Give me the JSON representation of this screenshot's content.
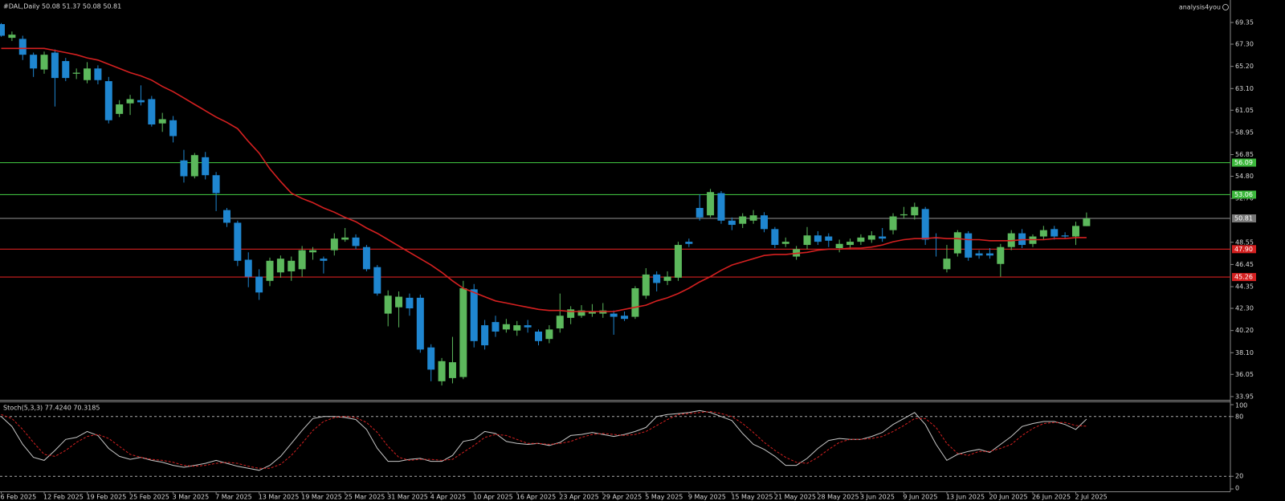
{
  "chart_data": [
    {
      "type": "candlestick",
      "title": "#DAL,Daily  50.08 51.37 50.08 50.81",
      "watermark": "analysis4you",
      "categories": [
        "6 Feb 2025",
        null,
        null,
        null,
        "12 Feb 2025",
        null,
        null,
        null,
        "19 Feb 2025",
        null,
        null,
        null,
        "25 Feb 2025",
        null,
        null,
        null,
        "3 Mar 2025",
        null,
        null,
        null,
        "7 Mar 2025",
        null,
        null,
        null,
        "13 Mar 2025",
        null,
        null,
        null,
        "19 Mar 2025",
        null,
        null,
        null,
        "25 Mar 2025",
        null,
        null,
        null,
        "31 Mar 2025",
        null,
        null,
        null,
        "4 Apr 2025",
        null,
        null,
        null,
        "10 Apr 2025",
        null,
        null,
        null,
        "16 Apr 2025",
        null,
        null,
        null,
        "23 Apr 2025",
        null,
        null,
        null,
        "29 Apr 2025",
        null,
        null,
        null,
        "5 May 2025",
        null,
        null,
        null,
        "9 May 2025",
        null,
        null,
        null,
        "15 May 2025",
        null,
        null,
        null,
        "21 May 2025",
        null,
        null,
        null,
        "28 May 2025",
        null,
        null,
        null,
        "3 Jun 2025",
        null,
        null,
        null,
        "9 Jun 2025",
        null,
        null,
        null,
        "13 Jun 2025",
        null,
        null,
        null,
        "20 Jun 2025",
        null,
        null,
        null,
        "26 Jun 2025",
        null,
        null,
        null,
        "2 Jul 2025",
        null
      ],
      "open": [
        69.2,
        67.9,
        67.8,
        66.3,
        64.9,
        66.5,
        65.7,
        64.5,
        63.9,
        65.0,
        63.8,
        60.7,
        61.7,
        62.0,
        62.1,
        59.8,
        60.1,
        56.3,
        54.8,
        56.6,
        54.9,
        51.6,
        50.4,
        46.9,
        45.3,
        44.9,
        45.7,
        45.8,
        46.0,
        47.6,
        47.0,
        47.8,
        48.8,
        49.0,
        48.1,
        46.2,
        41.8,
        42.4,
        43.3,
        43.3,
        38.6,
        35.4,
        35.7,
        35.8,
        44.1,
        40.7,
        41.0,
        40.3,
        40.2,
        40.7,
        40.1,
        39.4,
        40.4,
        41.4,
        41.6,
        41.8,
        41.8,
        41.8,
        41.6,
        41.5,
        43.5,
        45.5,
        44.9,
        45.2,
        48.6,
        51.8,
        51.1,
        53.2,
        50.6,
        50.3,
        50.6,
        51.1,
        49.8,
        48.4,
        47.2,
        48.3,
        49.2,
        49.1,
        48.0,
        48.3,
        48.6,
        48.8,
        49.1,
        49.7,
        51.1,
        51.1,
        51.7,
        49.0,
        46.0,
        47.5,
        49.4,
        47.5,
        47.5,
        46.5,
        48.1,
        49.4,
        48.4,
        49.1,
        49.8,
        49.2,
        49.1,
        50.08
      ],
      "high": [
        69.3,
        68.5,
        68.1,
        66.5,
        66.6,
        66.8,
        66.0,
        65.0,
        65.6,
        65.3,
        64.2,
        62.0,
        62.5,
        63.4,
        62.4,
        60.8,
        60.5,
        57.3,
        57.0,
        57.1,
        55.2,
        51.8,
        50.6,
        47.6,
        46.0,
        47.1,
        47.3,
        47.2,
        48.2,
        48.1,
        47.2,
        49.4,
        49.9,
        49.3,
        48.3,
        46.4,
        44.0,
        43.9,
        43.7,
        43.6,
        38.9,
        37.6,
        39.6,
        44.9,
        44.6,
        41.2,
        41.6,
        41.3,
        41.1,
        41.2,
        40.3,
        40.7,
        43.7,
        42.5,
        42.6,
        42.7,
        42.8,
        42.1,
        42.0,
        44.4,
        46.1,
        45.8,
        45.8,
        48.6,
        48.9,
        53.1,
        53.6,
        53.4,
        50.9,
        51.3,
        51.6,
        51.4,
        50.0,
        49.0,
        48.2,
        50.0,
        49.6,
        49.4,
        48.8,
        48.9,
        49.3,
        49.6,
        49.9,
        51.3,
        51.9,
        52.3,
        51.9,
        49.4,
        48.3,
        49.7,
        49.6,
        47.8,
        48.0,
        48.4,
        49.7,
        49.8,
        49.3,
        50.1,
        50.1,
        49.5,
        50.5,
        51.37
      ],
      "low": [
        68.0,
        67.6,
        65.8,
        64.2,
        64.5,
        61.4,
        63.8,
        64.0,
        63.6,
        63.5,
        59.8,
        60.4,
        60.6,
        61.5,
        59.5,
        59.0,
        58.0,
        54.2,
        54.6,
        54.5,
        51.5,
        50.0,
        46.3,
        44.3,
        43.1,
        44.4,
        45.2,
        44.9,
        45.3,
        46.9,
        45.6,
        47.3,
        48.6,
        47.9,
        45.8,
        43.5,
        40.6,
        40.5,
        41.6,
        38.1,
        35.4,
        35.0,
        35.2,
        35.6,
        38.6,
        38.4,
        39.6,
        40.0,
        39.7,
        40.0,
        38.8,
        39.0,
        40.0,
        40.8,
        41.4,
        41.5,
        41.4,
        39.8,
        41.1,
        41.3,
        43.2,
        43.9,
        44.5,
        44.9,
        48.1,
        50.6,
        50.9,
        50.3,
        49.7,
        49.9,
        50.3,
        49.5,
        48.0,
        48.1,
        46.9,
        47.9,
        48.3,
        48.1,
        47.6,
        47.9,
        48.3,
        48.5,
        48.6,
        49.3,
        50.8,
        50.7,
        48.3,
        47.2,
        45.7,
        47.2,
        46.8,
        47.0,
        47.0,
        45.3,
        47.8,
        48.0,
        48.1,
        48.8,
        48.8,
        48.9,
        48.3,
        50.08
      ],
      "close": [
        68.1,
        68.2,
        66.3,
        65.0,
        66.3,
        64.1,
        64.1,
        64.6,
        65.0,
        63.9,
        60.1,
        61.6,
        62.1,
        61.8,
        59.7,
        60.2,
        58.6,
        54.8,
        56.8,
        54.9,
        53.2,
        50.4,
        46.8,
        45.3,
        43.8,
        46.8,
        47.0,
        46.8,
        47.8,
        47.8,
        46.8,
        48.9,
        49.0,
        48.2,
        46.0,
        43.7,
        43.5,
        43.4,
        42.3,
        38.4,
        36.5,
        37.3,
        37.2,
        44.2,
        39.2,
        38.8,
        40.1,
        40.8,
        40.7,
        40.5,
        39.2,
        40.3,
        41.6,
        42.2,
        42.1,
        42.0,
        42.1,
        41.5,
        41.3,
        44.2,
        45.5,
        44.7,
        45.3,
        48.3,
        48.4,
        50.9,
        53.3,
        50.6,
        50.2,
        51.0,
        51.1,
        49.8,
        48.3,
        48.6,
        47.9,
        49.2,
        48.6,
        48.7,
        48.4,
        48.6,
        49.0,
        49.2,
        48.9,
        51.0,
        51.2,
        51.9,
        48.8,
        48.9,
        47.0,
        49.5,
        47.1,
        47.3,
        47.3,
        48.1,
        49.4,
        48.3,
        49.1,
        49.7,
        49.1,
        49.1,
        50.1,
        50.81
      ],
      "up_color": "#5cb85c",
      "down_color": "#1f86d0",
      "ma": {
        "color": "#d42020",
        "values": [
          66.9,
          66.9,
          66.9,
          66.9,
          66.9,
          66.7,
          66.5,
          66.3,
          66.0,
          65.8,
          65.4,
          65.0,
          64.6,
          64.3,
          63.9,
          63.3,
          62.8,
          62.2,
          61.6,
          61.0,
          60.4,
          59.9,
          59.3,
          58.1,
          57.0,
          55.5,
          54.3,
          53.2,
          52.7,
          52.3,
          51.8,
          51.4,
          50.9,
          50.5,
          49.9,
          49.4,
          48.8,
          48.2,
          47.6,
          47.0,
          46.4,
          45.7,
          44.9,
          44.2,
          43.8,
          43.4,
          43.0,
          42.8,
          42.6,
          42.4,
          42.2,
          42.1,
          42.1,
          42.0,
          42.0,
          42.0,
          42.0,
          42.0,
          42.2,
          42.4,
          42.6,
          43.0,
          43.3,
          43.7,
          44.2,
          44.8,
          45.3,
          45.9,
          46.4,
          46.7,
          47.0,
          47.3,
          47.4,
          47.4,
          47.5,
          47.6,
          47.8,
          47.9,
          47.9,
          48.0,
          48.0,
          48.1,
          48.3,
          48.6,
          48.8,
          48.9,
          48.9,
          49.0,
          48.9,
          48.9,
          48.8,
          48.8,
          48.7,
          48.7,
          48.7,
          48.8,
          48.8,
          48.8,
          48.9,
          48.9,
          49.0,
          49.0
        ]
      },
      "levels": [
        {
          "value": 56.09,
          "color": "#3cb83c"
        },
        {
          "value": 53.06,
          "color": "#3cb83c"
        },
        {
          "value": 50.81,
          "color": "#777777"
        },
        {
          "value": 47.9,
          "label": "47.90",
          "color": "#d42020"
        },
        {
          "value": 45.26,
          "color": "#d42020"
        }
      ],
      "ylim": [
        33.64,
        71.48
      ],
      "yticks": [
        69.35,
        {
          "value": 67.3,
          "label": "67.30"
        },
        {
          "value": 65.2,
          "label": "65.20"
        },
        {
          "value": 63.1,
          "label": "63.10"
        },
        61.05,
        58.95,
        56.85,
        {
          "value": 54.8,
          "label": "54.80"
        },
        {
          "value": 52.7,
          "label": "52.70"
        },
        48.55,
        46.45,
        44.35,
        {
          "value": 42.3,
          "label": "42.30"
        },
        {
          "value": 40.2,
          "label": "40.20"
        },
        {
          "value": 38.1,
          "label": "38.10"
        },
        36.05,
        33.95
      ]
    },
    {
      "type": "line",
      "title": "Stoch(5,3,3) 77.4240 70.3185",
      "ylim": [
        0,
        100
      ],
      "yticks": [
        0,
        20,
        80,
        100
      ],
      "series": [
        {
          "color": "#c8c8c8",
          "style": "solid",
          "values": [
            80,
            70,
            52,
            39,
            36,
            46,
            57,
            59,
            65,
            61,
            48,
            40,
            37,
            39,
            36,
            34,
            31,
            29,
            31,
            33,
            36,
            33,
            30,
            28,
            26,
            31,
            40,
            53,
            66,
            78,
            80,
            80,
            79,
            77,
            67,
            48,
            35,
            35,
            37,
            38,
            35,
            35,
            41,
            55,
            57,
            65,
            63,
            55,
            53,
            52,
            53,
            51,
            54,
            61,
            62,
            64,
            62,
            60,
            62,
            65,
            69,
            80,
            82,
            83,
            84,
            86,
            84,
            80,
            76,
            63,
            52,
            47,
            40,
            31,
            31,
            38,
            48,
            56,
            58,
            57,
            57,
            60,
            64,
            72,
            78,
            84,
            72,
            52,
            36,
            42,
            45,
            47,
            44,
            52,
            60,
            70,
            73,
            75,
            75,
            72,
            67,
            77.424
          ]
        },
        {
          "color": "#d42020",
          "style": "dashed",
          "values": [
            82,
            78,
            67,
            54,
            42,
            40,
            46,
            54,
            60,
            62,
            58,
            50,
            42,
            39,
            37,
            36,
            34,
            31,
            30,
            31,
            33,
            34,
            33,
            30,
            28,
            28,
            32,
            41,
            53,
            66,
            75,
            79,
            80,
            79,
            74,
            64,
            50,
            39,
            36,
            37,
            37,
            36,
            37,
            44,
            51,
            59,
            62,
            61,
            57,
            53,
            53,
            52,
            53,
            55,
            59,
            62,
            63,
            62,
            61,
            62,
            65,
            71,
            77,
            82,
            83,
            84,
            85,
            83,
            80,
            73,
            64,
            54,
            46,
            39,
            34,
            33,
            39,
            47,
            54,
            57,
            57,
            58,
            60,
            65,
            71,
            78,
            78,
            69,
            53,
            43,
            41,
            45,
            45,
            48,
            52,
            61,
            68,
            73,
            74,
            74,
            71,
            70.3185
          ]
        }
      ]
    }
  ]
}
